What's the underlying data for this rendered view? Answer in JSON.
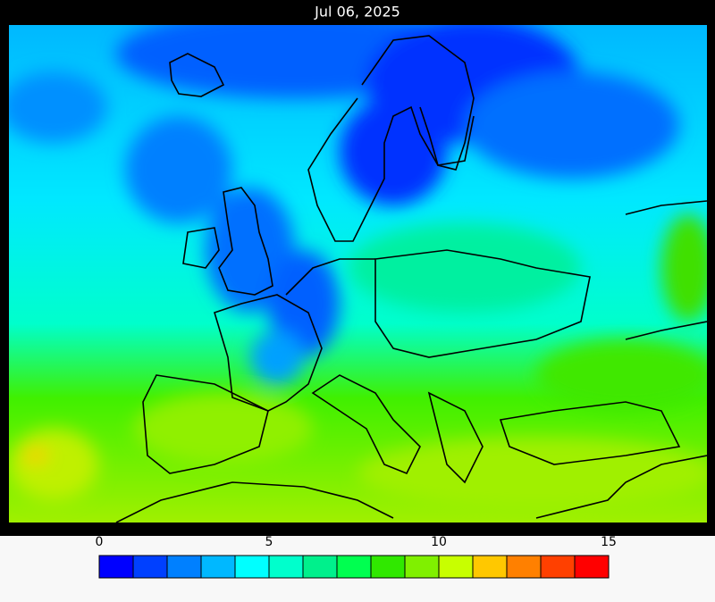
{
  "title": "Jul 06, 2025",
  "colorbar": {
    "ticks": [
      0,
      5,
      10,
      15
    ],
    "colors": [
      "#0000ff",
      "#0040ff",
      "#0080ff",
      "#00b8ff",
      "#00ffff",
      "#00ffcc",
      "#00f08c",
      "#00ff50",
      "#30e800",
      "#80f000",
      "#c8ff00",
      "#ffc800",
      "#ff8000",
      "#ff4000",
      "#ff0000"
    ]
  }
}
